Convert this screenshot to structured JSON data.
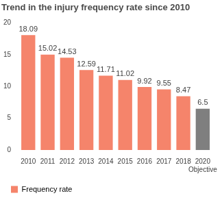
{
  "chart_data": {
    "type": "bar",
    "title": "Trend in the injury frequency rate since 2010",
    "categories": [
      "2010",
      "2011",
      "2012",
      "2013",
      "2014",
      "2015",
      "2016",
      "2017",
      "2018",
      [
        "2020",
        "Objective"
      ]
    ],
    "series": [
      {
        "name": "Frequency rate",
        "values": [
          18.09,
          15.02,
          14.53,
          12.59,
          11.71,
          11.02,
          9.92,
          9.55,
          8.47,
          6.5
        ]
      }
    ],
    "colors": [
      "#f5846b",
      "#f5846b",
      "#f5846b",
      "#f5846b",
      "#f5846b",
      "#f5846b",
      "#f5846b",
      "#f5846b",
      "#f5846b",
      "#7f7f7f"
    ],
    "ylim": [
      0,
      20
    ],
    "yticks": [
      0,
      5,
      10,
      15,
      20
    ],
    "grid": false,
    "legend": "bottom",
    "data_labels": true
  }
}
